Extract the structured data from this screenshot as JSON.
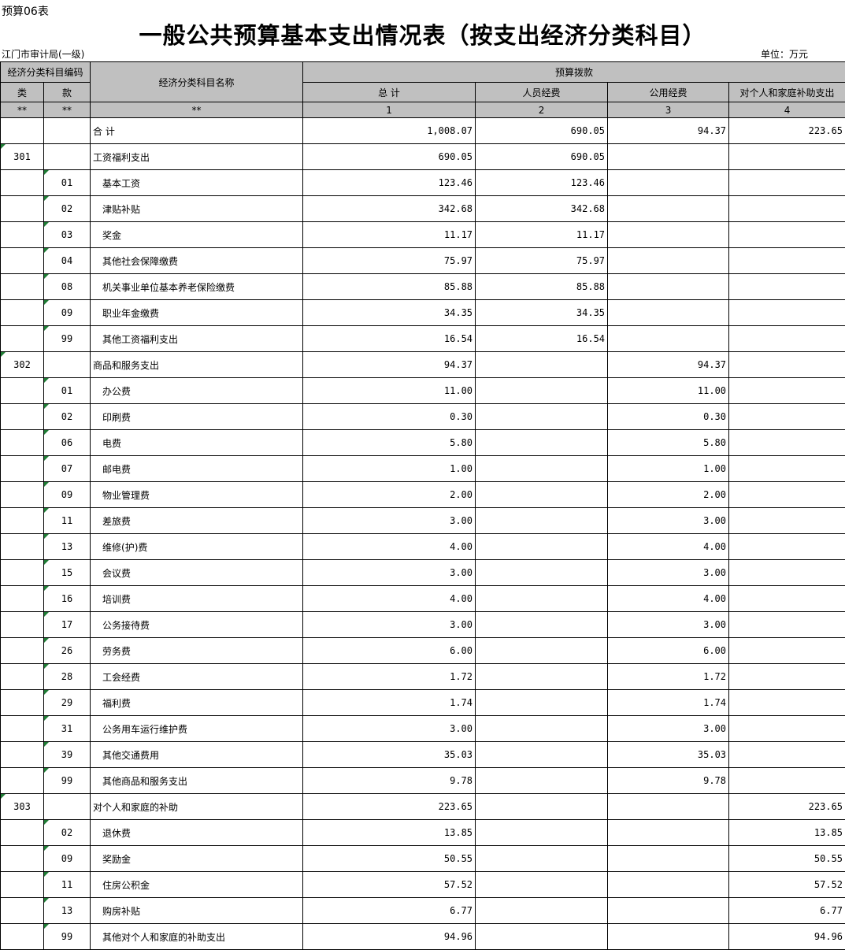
{
  "form_no": "预算06表",
  "title": "一般公共预算基本支出情况表（按支出经济分类科目）",
  "org": "江门市审计局(一级)",
  "unit": "单位：万元",
  "header": {
    "code_group": "经济分类科目编码",
    "name": "经济分类科目名称",
    "budget": "预算拨款",
    "lei": "类",
    "kuan": "款",
    "total": "总 计",
    "personnel": "人员经费",
    "public": "公用经费",
    "individual": "对个人和家庭补助支出",
    "stars": "**",
    "n1": "1",
    "n2": "2",
    "n3": "3",
    "n4": "4"
  },
  "rows": [
    {
      "lei": "",
      "kuan": "",
      "name": "合  计",
      "total": "1,008.07",
      "personnel": "690.05",
      "public": "94.37",
      "individual": "223.65"
    },
    {
      "lei": "301",
      "kuan": "",
      "name": "工资福利支出",
      "total": "690.05",
      "personnel": "690.05",
      "public": "",
      "individual": ""
    },
    {
      "lei": "",
      "kuan": "01",
      "name": "基本工资",
      "total": "123.46",
      "personnel": "123.46",
      "public": "",
      "individual": ""
    },
    {
      "lei": "",
      "kuan": "02",
      "name": "津贴补贴",
      "total": "342.68",
      "personnel": "342.68",
      "public": "",
      "individual": ""
    },
    {
      "lei": "",
      "kuan": "03",
      "name": "奖金",
      "total": "11.17",
      "personnel": "11.17",
      "public": "",
      "individual": ""
    },
    {
      "lei": "",
      "kuan": "04",
      "name": "其他社会保障缴费",
      "total": "75.97",
      "personnel": "75.97",
      "public": "",
      "individual": ""
    },
    {
      "lei": "",
      "kuan": "08",
      "name": "机关事业单位基本养老保险缴费",
      "total": "85.88",
      "personnel": "85.88",
      "public": "",
      "individual": ""
    },
    {
      "lei": "",
      "kuan": "09",
      "name": "职业年金缴费",
      "total": "34.35",
      "personnel": "34.35",
      "public": "",
      "individual": ""
    },
    {
      "lei": "",
      "kuan": "99",
      "name": "其他工资福利支出",
      "total": "16.54",
      "personnel": "16.54",
      "public": "",
      "individual": ""
    },
    {
      "lei": "302",
      "kuan": "",
      "name": "商品和服务支出",
      "total": "94.37",
      "personnel": "",
      "public": "94.37",
      "individual": ""
    },
    {
      "lei": "",
      "kuan": "01",
      "name": "办公费",
      "total": "11.00",
      "personnel": "",
      "public": "11.00",
      "individual": ""
    },
    {
      "lei": "",
      "kuan": "02",
      "name": "印刷费",
      "total": "0.30",
      "personnel": "",
      "public": "0.30",
      "individual": ""
    },
    {
      "lei": "",
      "kuan": "06",
      "name": "电费",
      "total": "5.80",
      "personnel": "",
      "public": "5.80",
      "individual": ""
    },
    {
      "lei": "",
      "kuan": "07",
      "name": "邮电费",
      "total": "1.00",
      "personnel": "",
      "public": "1.00",
      "individual": ""
    },
    {
      "lei": "",
      "kuan": "09",
      "name": "物业管理费",
      "total": "2.00",
      "personnel": "",
      "public": "2.00",
      "individual": ""
    },
    {
      "lei": "",
      "kuan": "11",
      "name": "差旅费",
      "total": "3.00",
      "personnel": "",
      "public": "3.00",
      "individual": ""
    },
    {
      "lei": "",
      "kuan": "13",
      "name": "维修(护)费",
      "total": "4.00",
      "personnel": "",
      "public": "4.00",
      "individual": ""
    },
    {
      "lei": "",
      "kuan": "15",
      "name": "会议费",
      "total": "3.00",
      "personnel": "",
      "public": "3.00",
      "individual": ""
    },
    {
      "lei": "",
      "kuan": "16",
      "name": "培训费",
      "total": "4.00",
      "personnel": "",
      "public": "4.00",
      "individual": ""
    },
    {
      "lei": "",
      "kuan": "17",
      "name": "公务接待费",
      "total": "3.00",
      "personnel": "",
      "public": "3.00",
      "individual": ""
    },
    {
      "lei": "",
      "kuan": "26",
      "name": "劳务费",
      "total": "6.00",
      "personnel": "",
      "public": "6.00",
      "individual": ""
    },
    {
      "lei": "",
      "kuan": "28",
      "name": "工会经费",
      "total": "1.72",
      "personnel": "",
      "public": "1.72",
      "individual": ""
    },
    {
      "lei": "",
      "kuan": "29",
      "name": "福利费",
      "total": "1.74",
      "personnel": "",
      "public": "1.74",
      "individual": ""
    },
    {
      "lei": "",
      "kuan": "31",
      "name": "公务用车运行维护费",
      "total": "3.00",
      "personnel": "",
      "public": "3.00",
      "individual": ""
    },
    {
      "lei": "",
      "kuan": "39",
      "name": "其他交通费用",
      "total": "35.03",
      "personnel": "",
      "public": "35.03",
      "individual": ""
    },
    {
      "lei": "",
      "kuan": "99",
      "name": "其他商品和服务支出",
      "total": "9.78",
      "personnel": "",
      "public": "9.78",
      "individual": ""
    },
    {
      "lei": "303",
      "kuan": "",
      "name": "对个人和家庭的补助",
      "total": "223.65",
      "personnel": "",
      "public": "",
      "individual": "223.65"
    },
    {
      "lei": "",
      "kuan": "02",
      "name": "退休费",
      "total": "13.85",
      "personnel": "",
      "public": "",
      "individual": "13.85"
    },
    {
      "lei": "",
      "kuan": "09",
      "name": "奖励金",
      "total": "50.55",
      "personnel": "",
      "public": "",
      "individual": "50.55"
    },
    {
      "lei": "",
      "kuan": "11",
      "name": "住房公积金",
      "total": "57.52",
      "personnel": "",
      "public": "",
      "individual": "57.52"
    },
    {
      "lei": "",
      "kuan": "13",
      "name": "购房补贴",
      "total": "6.77",
      "personnel": "",
      "public": "",
      "individual": "6.77"
    },
    {
      "lei": "",
      "kuan": "99",
      "name": "其他对个人和家庭的补助支出",
      "total": "94.96",
      "personnel": "",
      "public": "",
      "individual": "94.96"
    }
  ]
}
